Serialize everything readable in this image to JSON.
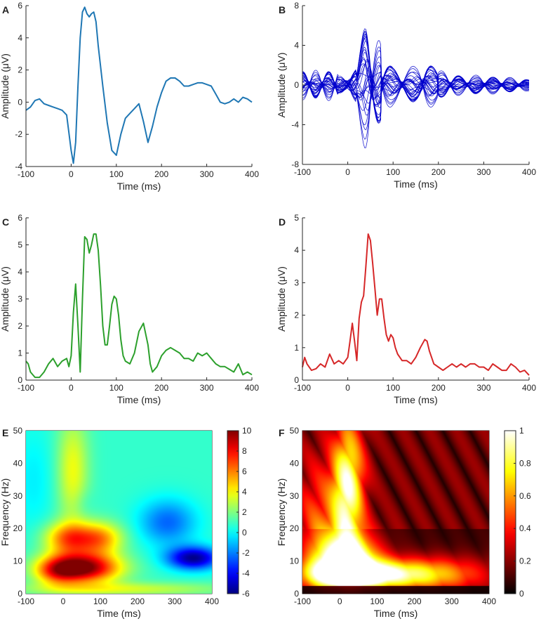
{
  "chart_data": [
    {
      "panel": "A",
      "type": "line",
      "color": "#1f77b4",
      "xlabel": "Time (ms)",
      "ylabel": "Amplitude (μV)",
      "xlim": [
        -100,
        400
      ],
      "ylim": [
        -4,
        6
      ],
      "xticks": [
        "-100",
        "0",
        "100",
        "200",
        "300",
        "400"
      ],
      "yticks": [
        "-4",
        "-2",
        "0",
        "2",
        "4",
        "6"
      ],
      "x": [
        -100,
        -90,
        -80,
        -70,
        -60,
        -50,
        -40,
        -30,
        -20,
        -10,
        0,
        5,
        10,
        15,
        20,
        25,
        30,
        35,
        40,
        45,
        50,
        55,
        60,
        70,
        80,
        90,
        100,
        110,
        120,
        130,
        140,
        150,
        160,
        170,
        180,
        190,
        200,
        210,
        220,
        230,
        240,
        250,
        260,
        270,
        280,
        290,
        300,
        310,
        320,
        330,
        340,
        350,
        360,
        370,
        380,
        390,
        400
      ],
      "values": [
        -0.5,
        -0.3,
        0.1,
        0.2,
        -0.1,
        -0.2,
        -0.3,
        -0.4,
        -0.5,
        -0.8,
        -3.0,
        -3.8,
        -2.5,
        1.0,
        4.0,
        5.6,
        5.9,
        5.5,
        5.3,
        5.5,
        5.6,
        5.0,
        3.5,
        1.0,
        -1.3,
        -3.0,
        -3.3,
        -2.0,
        -1.0,
        -0.7,
        -0.4,
        -0.1,
        -1.2,
        -2.5,
        -1.5,
        -0.3,
        0.6,
        1.3,
        1.5,
        1.5,
        1.3,
        1.0,
        1.0,
        1.1,
        1.2,
        1.2,
        1.1,
        1.0,
        0.5,
        0.0,
        -0.1,
        0.0,
        0.2,
        0.0,
        0.3,
        0.2,
        0.0
      ]
    },
    {
      "panel": "B",
      "type": "line",
      "color": "#0000cc",
      "xlabel": "Time (ms)",
      "ylabel": "Amplitude (μV)",
      "xlim": [
        -100,
        400
      ],
      "ylim": [
        -8,
        8
      ],
      "xticks": [
        "-100",
        "0",
        "100",
        "200",
        "300",
        "400"
      ],
      "yticks": [
        "-8",
        "-4",
        "0",
        "4",
        "8"
      ],
      "description_series": "overlay of many channel waveforms, peak envelope about ±7.5 μV near 45 ms",
      "envelope_x": [
        -100,
        -50,
        0,
        10,
        20,
        30,
        40,
        45,
        50,
        60,
        70,
        80,
        100,
        120,
        150,
        170,
        180,
        200,
        250,
        300,
        350,
        400
      ],
      "envelope_values": [
        1.5,
        1.5,
        2.0,
        3.0,
        3.5,
        5.0,
        7.0,
        7.5,
        7.2,
        5.5,
        4.5,
        3.0,
        2.0,
        1.5,
        2.0,
        3.0,
        2.5,
        1.5,
        1.0,
        1.0,
        0.8,
        0.6
      ],
      "lines": 34
    },
    {
      "panel": "C",
      "type": "line",
      "color": "#2ca02c",
      "xlabel": "Time (ms)",
      "ylabel": "Amplitude (μV)",
      "xlim": [
        -100,
        400
      ],
      "ylim": [
        0,
        6
      ],
      "xticks": [
        "-100",
        "0",
        "100",
        "200",
        "300",
        "400"
      ],
      "yticks": [
        "0",
        "1",
        "2",
        "3",
        "4",
        "5",
        "6"
      ],
      "x": [
        -100,
        -95,
        -90,
        -80,
        -70,
        -60,
        -50,
        -40,
        -30,
        -20,
        -10,
        -5,
        0,
        5,
        10,
        15,
        20,
        25,
        30,
        35,
        40,
        45,
        50,
        55,
        60,
        65,
        70,
        75,
        80,
        85,
        90,
        95,
        100,
        105,
        110,
        115,
        120,
        130,
        140,
        150,
        160,
        170,
        175,
        180,
        190,
        200,
        210,
        220,
        230,
        240,
        250,
        260,
        270,
        280,
        290,
        300,
        310,
        320,
        330,
        340,
        350,
        360,
        370,
        380,
        390,
        400
      ],
      "values": [
        0.7,
        0.6,
        0.3,
        0.1,
        0.1,
        0.3,
        0.6,
        0.8,
        0.5,
        0.7,
        0.8,
        0.5,
        0.9,
        2.5,
        3.55,
        2.0,
        0.3,
        3.0,
        5.3,
        5.2,
        4.7,
        5.0,
        5.4,
        5.4,
        4.8,
        3.5,
        2.0,
        1.3,
        1.3,
        2.0,
        2.8,
        3.1,
        3.0,
        2.4,
        1.5,
        0.9,
        0.7,
        0.6,
        1.0,
        1.8,
        2.1,
        1.3,
        0.6,
        0.3,
        0.5,
        0.9,
        1.1,
        1.2,
        1.1,
        1.0,
        0.8,
        0.8,
        0.7,
        1.0,
        0.9,
        1.0,
        0.8,
        0.6,
        0.5,
        0.5,
        0.4,
        0.3,
        0.6,
        0.2,
        0.3,
        0.2
      ]
    },
    {
      "panel": "D",
      "type": "line",
      "color": "#d62728",
      "xlabel": "Time (ms)",
      "ylabel": "Amplitude (μV)",
      "xlim": [
        -100,
        400
      ],
      "ylim": [
        0,
        5
      ],
      "xticks": [
        "-100",
        "0",
        "100",
        "200",
        "300",
        "400"
      ],
      "yticks": [
        "0",
        "1",
        "2",
        "3",
        "4",
        "5"
      ],
      "x": [
        -100,
        -95,
        -90,
        -80,
        -70,
        -60,
        -50,
        -40,
        -30,
        -20,
        -10,
        0,
        5,
        10,
        15,
        20,
        25,
        30,
        35,
        40,
        45,
        50,
        55,
        60,
        65,
        70,
        75,
        80,
        85,
        90,
        95,
        100,
        105,
        110,
        120,
        130,
        140,
        150,
        160,
        170,
        175,
        180,
        190,
        200,
        210,
        220,
        230,
        240,
        250,
        260,
        270,
        280,
        290,
        300,
        310,
        320,
        330,
        340,
        350,
        360,
        370,
        380,
        390,
        400
      ],
      "values": [
        0.4,
        0.7,
        0.5,
        0.3,
        0.35,
        0.5,
        0.4,
        0.8,
        0.5,
        0.6,
        0.5,
        0.7,
        1.2,
        1.75,
        1.2,
        0.6,
        1.9,
        2.4,
        2.6,
        3.5,
        4.5,
        4.3,
        3.6,
        2.8,
        2.0,
        2.5,
        2.5,
        1.9,
        1.4,
        1.2,
        1.4,
        1.3,
        1.0,
        0.8,
        0.6,
        0.6,
        0.5,
        0.7,
        1.0,
        1.25,
        1.2,
        0.9,
        0.5,
        0.4,
        0.3,
        0.4,
        0.5,
        0.4,
        0.5,
        0.4,
        0.5,
        0.5,
        0.4,
        0.4,
        0.3,
        0.5,
        0.4,
        0.3,
        0.3,
        0.5,
        0.4,
        0.25,
        0.3,
        0.15
      ]
    },
    {
      "panel": "E",
      "type": "heatmap",
      "colormap": "jet",
      "xlabel": "Time (ms)",
      "ylabel": "Frequency (Hz)",
      "xlim": [
        -100,
        400
      ],
      "ylim": [
        0,
        50
      ],
      "clim": [
        -6,
        10
      ],
      "xticks": [
        "-100",
        "0",
        "100",
        "200",
        "300",
        "400"
      ],
      "yticks": [
        "0",
        "10",
        "20",
        "30",
        "40",
        "50"
      ],
      "cticks": [
        "-6",
        "-4",
        "-2",
        "0",
        "2",
        "4",
        "6",
        "8",
        "10"
      ],
      "features": [
        {
          "t": 50,
          "f": 8,
          "value": 10,
          "label": "strong low-frequency power increase"
        },
        {
          "t": 60,
          "f": 17,
          "value": 5
        },
        {
          "t": 30,
          "f": 35,
          "value": 3
        },
        {
          "t": 280,
          "f": 22,
          "value": -2.5
        },
        {
          "t": 330,
          "f": 11,
          "value": -5.5
        }
      ]
    },
    {
      "panel": "F",
      "type": "heatmap",
      "colormap": "hot",
      "xlabel": "Time (ms)",
      "ylabel": "Frequency (Hz)",
      "xlim": [
        -100,
        400
      ],
      "ylim": [
        0,
        50
      ],
      "clim": [
        0,
        1
      ],
      "xticks": [
        "-100",
        "0",
        "100",
        "200",
        "300",
        "400"
      ],
      "yticks": [
        "0",
        "10",
        "20",
        "30",
        "40",
        "50"
      ],
      "cticks": [
        "0",
        "0.2",
        "0.4",
        "0.6",
        "0.8",
        "1"
      ],
      "features": [
        {
          "t": 30,
          "f": 10,
          "value": 1.0,
          "label": "phase-locking peak"
        },
        {
          "t": 20,
          "f": 40,
          "value": 0.8
        },
        {
          "t": 250,
          "f": 6,
          "value": 0.45
        },
        {
          "t": 0,
          "f": 2,
          "value": 0.05
        }
      ]
    }
  ],
  "panel_labels": [
    "A",
    "B",
    "C",
    "D",
    "E",
    "F"
  ]
}
